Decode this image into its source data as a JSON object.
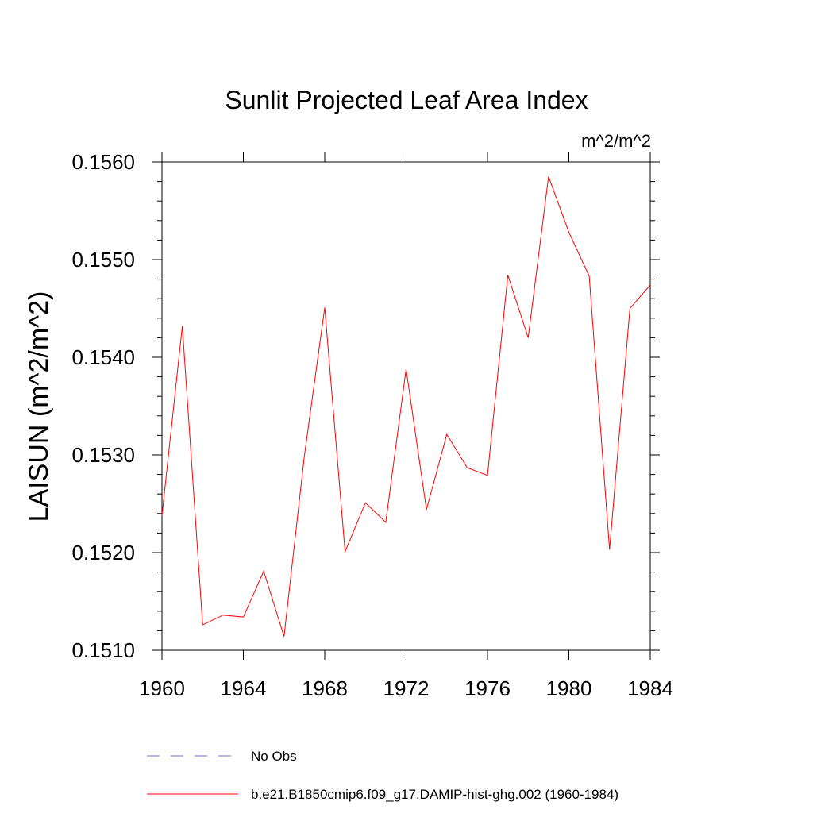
{
  "chart_data": {
    "type": "line",
    "title": "Sunlit Projected Leaf Area Index",
    "units_label": "m^2/m^2",
    "ylabel": "LAISUN  (m^2/m^2)",
    "xlabel": "",
    "xlim": [
      1960,
      1984
    ],
    "ylim": [
      0.151,
      0.156
    ],
    "x_ticks": [
      1960,
      1964,
      1968,
      1972,
      1976,
      1980,
      1984
    ],
    "x_tick_labels": [
      "1960",
      "1964",
      "1968",
      "1972",
      "1976",
      "1980",
      "1984"
    ],
    "y_ticks": [
      0.151,
      0.152,
      0.153,
      0.154,
      0.155,
      0.156
    ],
    "y_tick_labels": [
      "0.1510",
      "0.1520",
      "0.1530",
      "0.1540",
      "0.1550",
      "0.1560"
    ],
    "grid": false,
    "legend_position": "bottom",
    "legend": [
      {
        "name": "No Obs",
        "color": "#6b6bd6",
        "style": "dashed"
      },
      {
        "name": "b.e21.B1850cmip6.f09_g17.DAMIP-hist-ghg.002 (1960-1984)",
        "color": "#ff0000",
        "style": "solid"
      }
    ],
    "series": [
      {
        "name": "b.e21.B1850cmip6.f09_g17.DAMIP-hist-ghg.002 (1960-1984)",
        "color": "#ff0000",
        "x": [
          1960,
          1961,
          1962,
          1963,
          1964,
          1965,
          1966,
          1967,
          1968,
          1969,
          1970,
          1971,
          1972,
          1973,
          1974,
          1975,
          1976,
          1977,
          1978,
          1979,
          1980,
          1981,
          1982,
          1983,
          1984
        ],
        "values": [
          0.15238,
          0.15432,
          0.15126,
          0.15136,
          0.15134,
          0.15181,
          0.15114,
          0.15299,
          0.15451,
          0.15201,
          0.15251,
          0.15231,
          0.15388,
          0.15244,
          0.15321,
          0.15287,
          0.15279,
          0.15484,
          0.1542,
          0.15585,
          0.15528,
          0.15483,
          0.15203,
          0.1545,
          0.15474
        ]
      }
    ]
  }
}
